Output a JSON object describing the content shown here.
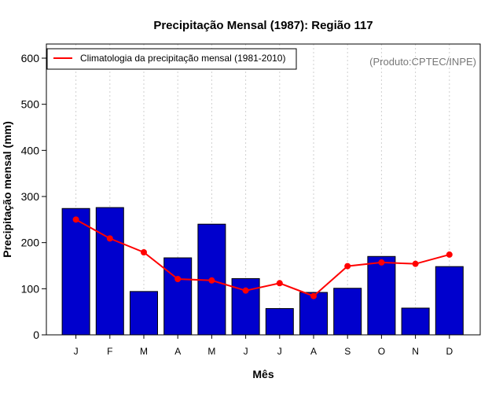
{
  "chart_data": {
    "type": "bar",
    "title": "Precipitação Mensal (1987): Região 117",
    "xlabel": "Mês",
    "ylabel": "Precipitação mensal (mm)",
    "ylim": [
      0,
      600
    ],
    "yticks": [
      0,
      100,
      200,
      300,
      400,
      500,
      600
    ],
    "categories": [
      "J",
      "F",
      "M",
      "A",
      "M",
      "J",
      "J",
      "A",
      "S",
      "O",
      "N",
      "D"
    ],
    "series": [
      {
        "name": "Precipitação mensal (1987)",
        "type": "bar",
        "color": "#0000CD",
        "values": [
          274,
          276,
          94,
          167,
          240,
          122,
          57,
          92,
          101,
          170,
          58,
          148
        ]
      },
      {
        "name": "Climatologia da precipitação mensal (1981-2010)",
        "type": "line",
        "color": "#FF0000",
        "values": [
          250,
          209,
          179,
          121,
          118,
          96,
          112,
          84,
          149,
          157,
          154,
          174
        ]
      }
    ],
    "legend": {
      "entries": [
        "Climatologia da precipitação mensal (1981-2010)"
      ],
      "position": "top-left"
    },
    "annotation": "(Produto:CPTEC/INPE)",
    "grid": "vertical dotted"
  }
}
